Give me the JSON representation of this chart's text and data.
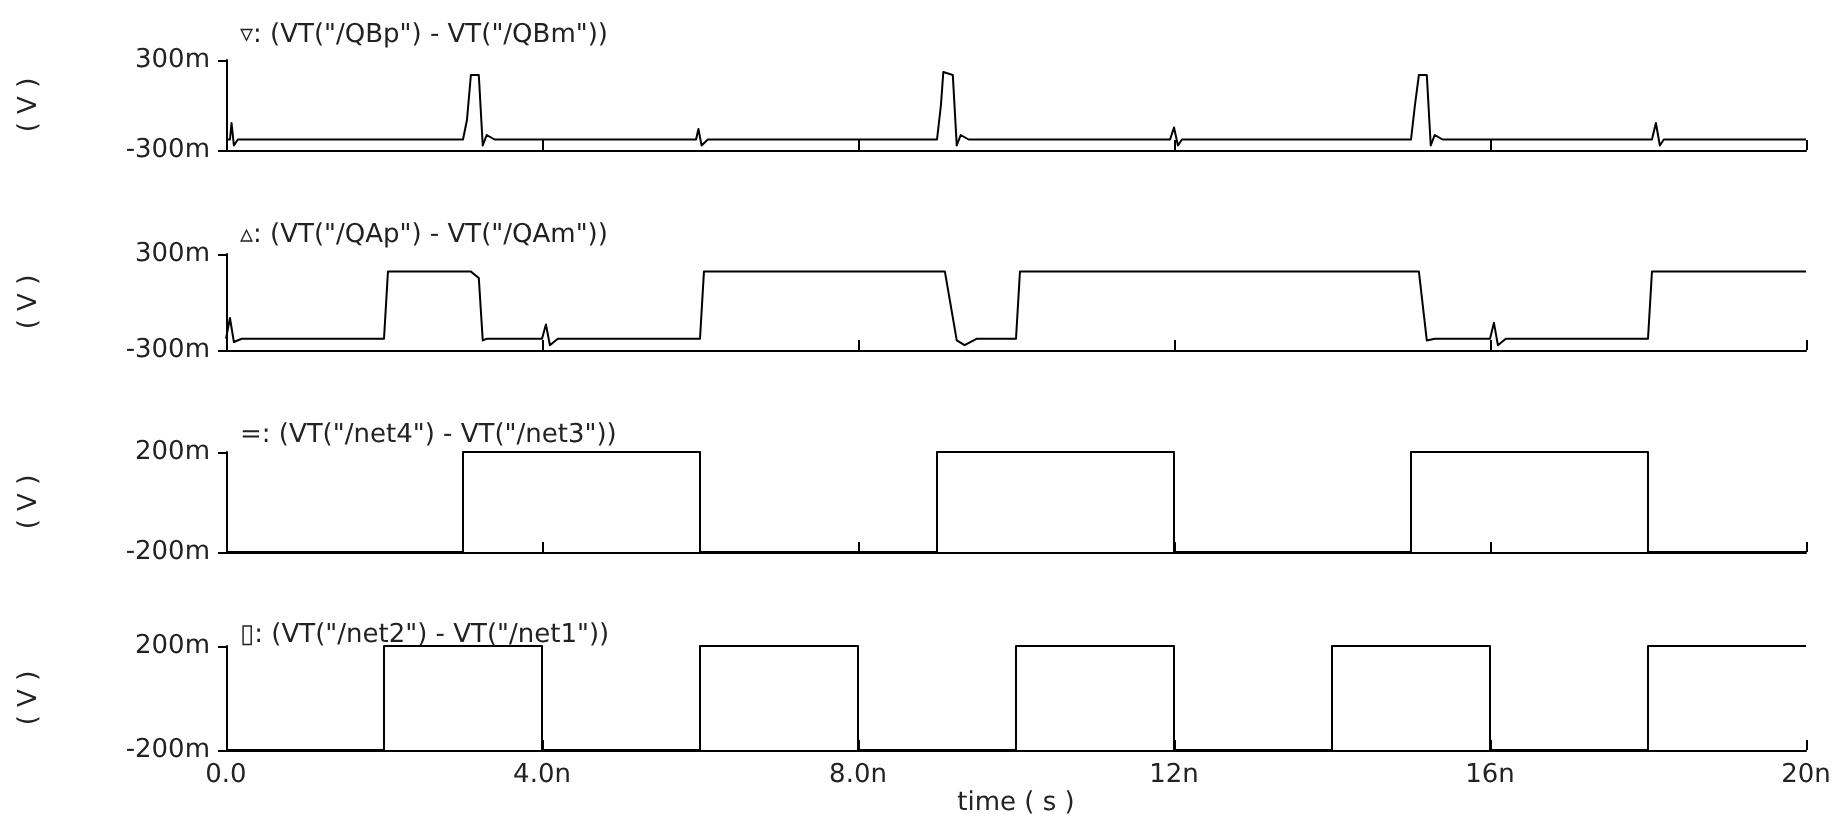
{
  "chart_data": [
    {
      "type": "line",
      "title": "▿: (VT(\"/QBp\") - VT(\"/QBm\"))",
      "ylabel": "( V )",
      "tick_labels": "y",
      "grid": false,
      "xlim": [
        0,
        20
      ],
      "ylim": [
        -300,
        300
      ],
      "yticks": [
        {
          "value": -300,
          "label": "-300m"
        },
        {
          "value": 300,
          "label": "300m"
        }
      ],
      "xticks": [
        0,
        4,
        8,
        12,
        16,
        20
      ],
      "series": [
        {
          "color": "#000000",
          "x": [
            0,
            0.05,
            0.07,
            0.1,
            0.15,
            3,
            3.05,
            3.1,
            3.2,
            3.25,
            3.3,
            3.4,
            5.95,
            5.98,
            6.02,
            6.1,
            9,
            9.05,
            9.08,
            9.2,
            9.25,
            9.3,
            9.4,
            11.95,
            12,
            12.05,
            12.1,
            15,
            15.05,
            15.1,
            15.2,
            15.25,
            15.3,
            15.4,
            18.05,
            18.1,
            18.15,
            18.2,
            20
          ],
          "values": [
            -230,
            -230,
            -120,
            -270,
            -230,
            -230,
            -100,
            200,
            200,
            -270,
            -200,
            -230,
            -230,
            -160,
            -270,
            -230,
            -230,
            0,
            220,
            200,
            -270,
            -200,
            -230,
            -230,
            -150,
            -270,
            -230,
            -230,
            0,
            200,
            200,
            -270,
            -200,
            -230,
            -230,
            -120,
            -270,
            -230,
            -230
          ]
        }
      ]
    },
    {
      "type": "line",
      "title": "▵: (VT(\"/QAp\") - VT(\"/QAm\"))",
      "ylabel": "( V )",
      "tick_labels": "y",
      "grid": false,
      "xlim": [
        0,
        20
      ],
      "ylim": [
        -300,
        300
      ],
      "yticks": [
        {
          "value": -300,
          "label": "-300m"
        },
        {
          "value": 300,
          "label": "300m"
        }
      ],
      "xticks": [
        0,
        4,
        8,
        12,
        16,
        20
      ],
      "series": [
        {
          "color": "#000000",
          "x": [
            0,
            0.05,
            0.1,
            0.2,
            2,
            2.05,
            3.1,
            3.2,
            3.25,
            3.3,
            4,
            4.05,
            4.1,
            4.2,
            6,
            6.05,
            9.1,
            9.25,
            9.35,
            9.5,
            10,
            10.05,
            15.1,
            15.2,
            15.3,
            16,
            16.05,
            16.1,
            16.2,
            18,
            18.05,
            20
          ],
          "values": [
            -230,
            -100,
            -250,
            -230,
            -230,
            190,
            190,
            150,
            -240,
            -230,
            -230,
            -140,
            -270,
            -230,
            -230,
            190,
            190,
            -240,
            -270,
            -230,
            -230,
            190,
            190,
            -240,
            -230,
            -230,
            -130,
            -270,
            -230,
            -230,
            190,
            190
          ]
        }
      ]
    },
    {
      "type": "line",
      "title": "=: (VT(\"/net4\") - VT(\"/net3\"))",
      "ylabel": "( V )",
      "tick_labels": "y",
      "grid": false,
      "xlim": [
        0,
        20
      ],
      "ylim": [
        -200,
        200
      ],
      "yticks": [
        {
          "value": -200,
          "label": "-200m"
        },
        {
          "value": 200,
          "label": "200m"
        }
      ],
      "xticks": [
        0,
        4,
        8,
        12,
        16,
        20
      ],
      "series": [
        {
          "color": "#000000",
          "x": [
            0,
            3,
            3,
            6,
            6,
            9,
            9,
            12,
            12,
            15,
            15,
            18,
            18,
            20
          ],
          "values": [
            -200,
            -200,
            200,
            200,
            -200,
            -200,
            200,
            200,
            -200,
            -200,
            200,
            200,
            -200,
            -200
          ]
        }
      ]
    },
    {
      "type": "line",
      "title": "▯: (VT(\"/net2\") - VT(\"/net1\"))",
      "ylabel": "( V )",
      "xlabel": "time ( s )",
      "grid": false,
      "xlim": [
        0,
        20
      ],
      "ylim": [
        -200,
        200
      ],
      "yticks": [
        {
          "value": -200,
          "label": "-200m"
        },
        {
          "value": 200,
          "label": "200m"
        }
      ],
      "xticks": [
        {
          "value": 0,
          "label": "0.0"
        },
        {
          "value": 4,
          "label": "4.0n"
        },
        {
          "value": 8,
          "label": "8.0n"
        },
        {
          "value": 12,
          "label": "12n"
        },
        {
          "value": 16,
          "label": "16n"
        },
        {
          "value": 20,
          "label": "20n"
        }
      ],
      "series": [
        {
          "color": "#000000",
          "x": [
            0,
            2,
            2,
            4,
            4,
            6,
            6,
            8,
            8,
            10,
            10,
            12,
            12,
            14,
            14,
            16,
            16,
            18,
            18,
            20
          ],
          "values": [
            -200,
            -200,
            200,
            200,
            -200,
            -200,
            200,
            200,
            -200,
            -200,
            200,
            200,
            -200,
            -200,
            200,
            200,
            -200,
            -200,
            200,
            200
          ]
        }
      ]
    }
  ]
}
